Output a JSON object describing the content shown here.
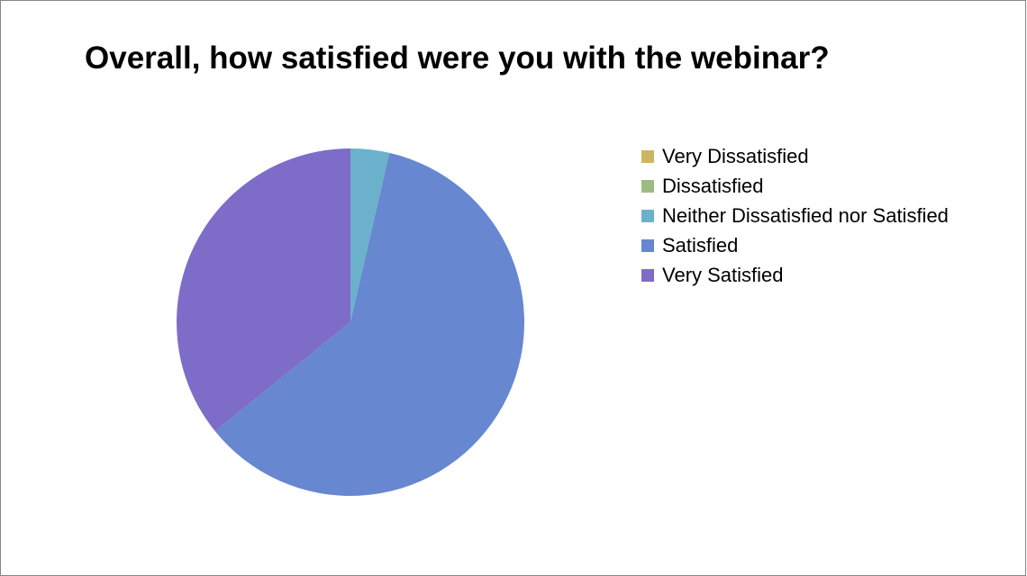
{
  "chart_data": {
    "type": "pie",
    "title": "Overall, how satisfied were you with the webinar?",
    "categories": [
      "Very Dissatisfied",
      "Dissatisfied",
      "Neither Dissatisfied nor Satisfied",
      "Satisfied",
      "Very Satisfied"
    ],
    "values": [
      0,
      0,
      3.6,
      60.6,
      35.8
    ],
    "colors": [
      "#CDB662",
      "#9DBB82",
      "#6BB1CC",
      "#6787D0",
      "#7D6DC8"
    ],
    "start_angle_deg": 0,
    "direction": "clockwise",
    "legend": "right"
  }
}
